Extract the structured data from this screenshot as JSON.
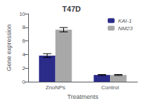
{
  "chart_data": {
    "type": "bar",
    "title": "T47D",
    "xlabel": "Treatments",
    "ylabel": "Gene expression",
    "categories": [
      "ZnoNPs",
      "Control"
    ],
    "series": [
      {
        "name": "KAI-1",
        "color": "#2b2b8a",
        "values": [
          3.85,
          1.0
        ],
        "errors": [
          0.28,
          0.07
        ]
      },
      {
        "name": "NM23",
        "color": "#a8a8a8",
        "values": [
          7.65,
          1.0
        ],
        "errors": [
          0.32,
          0.07
        ]
      }
    ],
    "ylim": [
      0,
      10
    ],
    "yticks": [
      0,
      2,
      4,
      6,
      8,
      10
    ],
    "grid": false,
    "legend": "upper right"
  }
}
